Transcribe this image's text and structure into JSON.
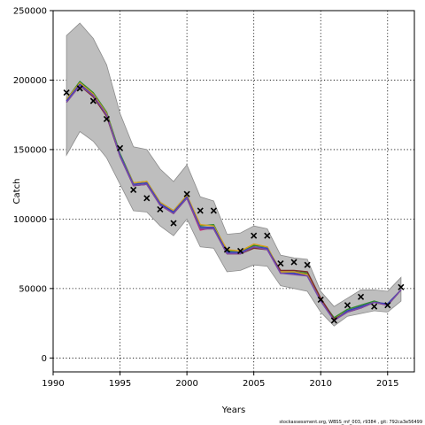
{
  "chart_data": {
    "type": "line",
    "xlabel": "Years",
    "ylabel": "Catch",
    "xlim": [
      1990,
      2017
    ],
    "ylim": [
      -10000,
      250000
    ],
    "x_ticks": [
      "1990",
      "1995",
      "2000",
      "2005",
      "2010",
      "2015"
    ],
    "y_ticks": [
      "0",
      "50000",
      "100000",
      "150000",
      "200000",
      "250000"
    ],
    "grid": true,
    "footer_text": "stockassessment.org, WBSS_mf_003, r9384 , git: 792ca3e56499",
    "band": {
      "x": [
        1991,
        1992,
        1993,
        1994,
        1995,
        1996,
        1997,
        1998,
        1999,
        2000,
        2001,
        2002,
        2003,
        2004,
        2005,
        2006,
        2007,
        2008,
        2009,
        2010,
        2011,
        2012,
        2013,
        2014,
        2015,
        2016
      ],
      "upper": [
        232000,
        241000,
        230000,
        211000,
        176000,
        152000,
        150000,
        136000,
        127000,
        139000,
        116000,
        113000,
        89000,
        90000,
        95000,
        93000,
        74000,
        72000,
        71000,
        48000,
        37000,
        43000,
        49000,
        49000,
        48000,
        58000
      ],
      "lower": [
        146000,
        163000,
        156000,
        144000,
        125000,
        106000,
        105000,
        95000,
        88000,
        100000,
        80000,
        79000,
        62000,
        63000,
        67000,
        66000,
        52000,
        50000,
        48000,
        33000,
        23000,
        30000,
        32000,
        34000,
        33000,
        41000
      ]
    },
    "series": [
      {
        "color": "#cc2277",
        "values": [
          185000,
          197000,
          190000,
          176000,
          146000,
          124000,
          125000,
          110000,
          104000,
          115000,
          92000,
          94000,
          75000,
          75000,
          80000,
          78000,
          61000,
          61000,
          60000,
          42000,
          27000,
          33000,
          36000,
          40000,
          38000,
          49000
        ]
      },
      {
        "color": "#2d8a2d",
        "values": [
          186000,
          199000,
          191000,
          177000,
          147000,
          126000,
          127000,
          112000,
          106000,
          117000,
          95000,
          96000,
          77000,
          77000,
          81000,
          80000,
          62000,
          62000,
          61000,
          42000,
          29000,
          35000,
          38000,
          41000,
          38000,
          49000
        ]
      },
      {
        "color": "#d9a020",
        "values": [
          186000,
          198000,
          190000,
          176000,
          146000,
          126000,
          127000,
          112000,
          106000,
          117000,
          96000,
          95000,
          78000,
          77000,
          82000,
          80000,
          62000,
          62000,
          60000,
          42000,
          28000,
          34000,
          37000,
          40000,
          39000,
          49000
        ]
      },
      {
        "color": "#7a2a2a",
        "values": [
          184000,
          196000,
          188000,
          174000,
          145000,
          124000,
          125000,
          110000,
          104000,
          115000,
          93000,
          93000,
          75000,
          75000,
          79000,
          78000,
          63000,
          63000,
          62000,
          43000,
          28000,
          33000,
          36000,
          40000,
          38000,
          49000
        ]
      },
      {
        "color": "#2c3fbf",
        "values": [
          185000,
          197000,
          189000,
          175000,
          146000,
          125000,
          126000,
          111000,
          105000,
          116000,
          94000,
          94000,
          76000,
          76000,
          80000,
          79000,
          61000,
          61000,
          59000,
          41000,
          27000,
          34000,
          37000,
          40000,
          39000,
          49000
        ]
      },
      {
        "color": "#7a4aa8",
        "values": [
          184000,
          196000,
          189000,
          175000,
          145000,
          124000,
          125000,
          110000,
          104000,
          115000,
          93000,
          93000,
          75000,
          75000,
          80000,
          78000,
          61000,
          60000,
          59000,
          41000,
          27000,
          33000,
          36000,
          40000,
          38000,
          49000
        ]
      }
    ],
    "observed": {
      "x": [
        1991,
        1992,
        1993,
        1994,
        1995,
        1996,
        1997,
        1998,
        1999,
        2000,
        2001,
        2002,
        2003,
        2004,
        2005,
        2006,
        2007,
        2008,
        2009,
        2010,
        2011,
        2012,
        2013,
        2014,
        2015,
        2016
      ],
      "y": [
        191000,
        194000,
        185000,
        172000,
        151000,
        121000,
        115000,
        107000,
        97000,
        118000,
        106000,
        106000,
        78000,
        77000,
        88000,
        88000,
        68000,
        69000,
        67000,
        42000,
        27000,
        38000,
        44000,
        37000,
        38000,
        51000
      ]
    }
  }
}
